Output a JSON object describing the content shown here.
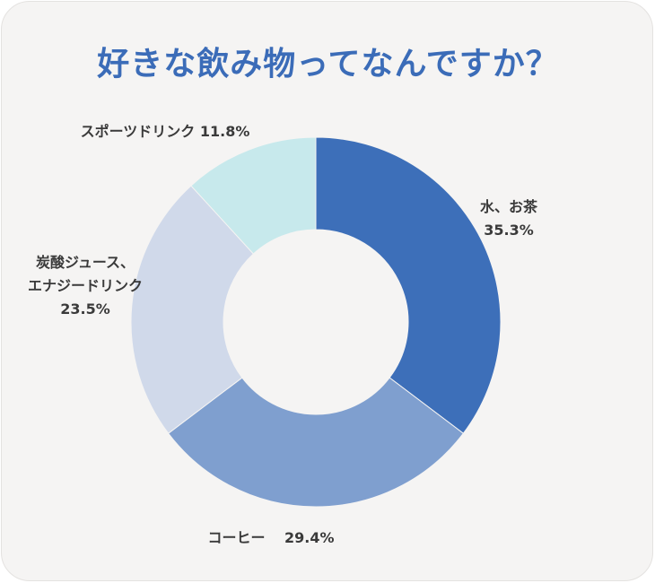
{
  "chart_data": {
    "type": "pie",
    "title": "好きな飲み物ってなんですか？",
    "donut": true,
    "slices": [
      {
        "label_lines": [
          "水、お茶"
        ],
        "value": 35.3,
        "value_text": "35.3%",
        "color": "#3d6fb9"
      },
      {
        "label_lines": [
          "コーヒー"
        ],
        "value": 29.4,
        "value_text": "29.4%",
        "color": "#7f9fcf"
      },
      {
        "label_lines": [
          "炭酸ジュース、",
          "エナジードリンク"
        ],
        "value": 23.5,
        "value_text": "23.5%",
        "color": "#d0d9ea"
      },
      {
        "label_lines": [
          "スポーツドリンク"
        ],
        "value": 11.8,
        "value_text": "11.8%",
        "color": "#c7e9ec"
      }
    ]
  }
}
